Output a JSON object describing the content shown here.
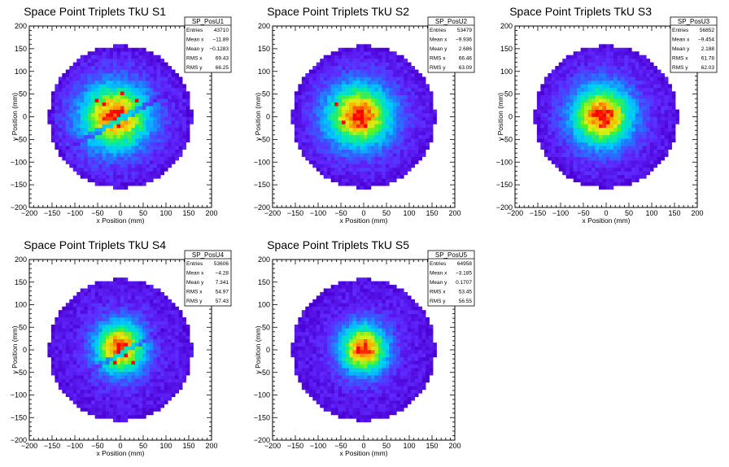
{
  "chart_data": [
    {
      "type": "heatmap",
      "title": "Space Point Triplets TkU S1",
      "xlabel": "x Position (mm)",
      "ylabel": "y Position (mm)",
      "xlim": [
        -200,
        200
      ],
      "ylim": [
        -200,
        200
      ],
      "xticks": [
        -200,
        -150,
        -100,
        -50,
        0,
        50,
        100,
        150,
        200
      ],
      "yticks": [
        -200,
        -150,
        -100,
        -50,
        0,
        50,
        100,
        150,
        200
      ],
      "stats": {
        "name": "SP_PosU1",
        "rows": [
          {
            "label": "Entries",
            "value": "43710"
          },
          {
            "label": "Mean x",
            "value": "−11.89"
          },
          {
            "label": "Mean y",
            "value": "−0.1283"
          },
          {
            "label": "RMS x",
            "value": "69.43"
          },
          {
            "label": "RMS y",
            "value": "66.25"
          }
        ]
      },
      "distribution": {
        "center": [
          -12,
          0
        ],
        "sigma": [
          69,
          66
        ],
        "radius": 155,
        "band": {
          "slope": 0.55,
          "intercept": -5,
          "strength": 0.45
        }
      }
    },
    {
      "type": "heatmap",
      "title": "Space Point Triplets TkU S2",
      "xlabel": "x Position (mm)",
      "ylabel": "y Position (mm)",
      "xlim": [
        -200,
        200
      ],
      "ylim": [
        -200,
        200
      ],
      "xticks": [
        -200,
        -150,
        -100,
        -50,
        0,
        50,
        100,
        150,
        200
      ],
      "yticks": [
        -200,
        -150,
        -100,
        -50,
        0,
        50,
        100,
        150,
        200
      ],
      "stats": {
        "name": "SP_PosU2",
        "rows": [
          {
            "label": "Entries",
            "value": "53479"
          },
          {
            "label": "Mean x",
            "value": "−9.936"
          },
          {
            "label": "Mean y",
            "value": "2.686"
          },
          {
            "label": "RMS x",
            "value": "66.46"
          },
          {
            "label": "RMS y",
            "value": "63.09"
          }
        ]
      },
      "distribution": {
        "center": [
          -10,
          3
        ],
        "sigma": [
          66,
          63
        ],
        "radius": 155
      }
    },
    {
      "type": "heatmap",
      "title": "Space Point Triplets TkU S3",
      "xlabel": "x Position (mm)",
      "ylabel": "y Position (mm)",
      "xlim": [
        -200,
        200
      ],
      "ylim": [
        -200,
        200
      ],
      "xticks": [
        -200,
        -150,
        -100,
        -50,
        0,
        50,
        100,
        150,
        200
      ],
      "yticks": [
        -200,
        -150,
        -100,
        -50,
        0,
        50,
        100,
        150,
        200
      ],
      "stats": {
        "name": "SP_PosU3",
        "rows": [
          {
            "label": "Entries",
            "value": "56852"
          },
          {
            "label": "Mean x",
            "value": "−9.454"
          },
          {
            "label": "Mean y",
            "value": "2.188"
          },
          {
            "label": "RMS x",
            "value": "61.78"
          },
          {
            "label": "RMS y",
            "value": "62.03"
          }
        ]
      },
      "distribution": {
        "center": [
          -9,
          2
        ],
        "sigma": [
          62,
          62
        ],
        "radius": 155
      }
    },
    {
      "type": "heatmap",
      "title": "Space Point Triplets TkU S4",
      "xlabel": "x Position (mm)",
      "ylabel": "y Position (mm)",
      "xlim": [
        -200,
        200
      ],
      "ylim": [
        -200,
        200
      ],
      "xticks": [
        -200,
        -150,
        -100,
        -50,
        0,
        50,
        100,
        150,
        200
      ],
      "yticks": [
        -200,
        -150,
        -100,
        -50,
        0,
        50,
        100,
        150,
        200
      ],
      "stats": {
        "name": "SP_PosU4",
        "rows": [
          {
            "label": "Entries",
            "value": "53606"
          },
          {
            "label": "Mean x",
            "value": "−4.28"
          },
          {
            "label": "Mean y",
            "value": "7.341"
          },
          {
            "label": "RMS x",
            "value": "54.97"
          },
          {
            "label": "RMS y",
            "value": "57.43"
          }
        ]
      },
      "distribution": {
        "center": [
          0,
          5
        ],
        "sigma": [
          50,
          53
        ],
        "radius": 155,
        "band": {
          "slope": 0.55,
          "intercept": -8,
          "strength": 0.4
        }
      }
    },
    {
      "type": "heatmap",
      "title": "Space Point Triplets TkU S5",
      "xlabel": "x Position (mm)",
      "ylabel": "y Position (mm)",
      "xlim": [
        -200,
        200
      ],
      "ylim": [
        -200,
        200
      ],
      "xticks": [
        -200,
        -150,
        -100,
        -50,
        0,
        50,
        100,
        150,
        200
      ],
      "yticks": [
        -200,
        -150,
        -100,
        -50,
        0,
        50,
        100,
        150,
        200
      ],
      "stats": {
        "name": "SP_PosU5",
        "rows": [
          {
            "label": "Entries",
            "value": "64958"
          },
          {
            "label": "Mean x",
            "value": "−3.185"
          },
          {
            "label": "Mean y",
            "value": "0.1707"
          },
          {
            "label": "RMS x",
            "value": "53.45"
          },
          {
            "label": "RMS y",
            "value": "56.55"
          }
        ]
      },
      "distribution": {
        "center": [
          0,
          2
        ],
        "sigma": [
          48,
          50
        ],
        "radius": 155
      }
    }
  ]
}
